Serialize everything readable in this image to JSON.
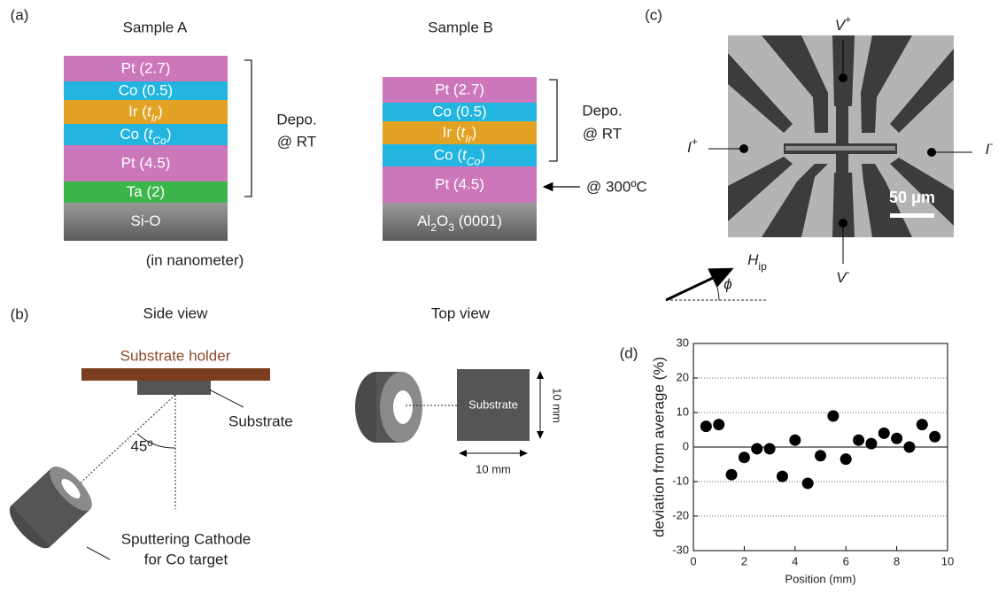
{
  "panel_labels": [
    "(a)",
    "(b)",
    "(c)",
    "(d)"
  ],
  "sample_a": {
    "title": "Sample A",
    "layers": [
      {
        "text": [
          "Pt (2.7)"
        ],
        "color": "#cc77bb"
      },
      {
        "text": [
          "Co (0.5)"
        ],
        "color": "#22b5e0"
      },
      {
        "text": [
          "Ir (",
          "t",
          "Ir",
          ")"
        ],
        "color": "#e2a224"
      },
      {
        "text": [
          "Co (",
          "t",
          "Co",
          ")"
        ],
        "color": "#22b5e0"
      },
      {
        "text": [
          "Pt (4.5)"
        ],
        "color": "#cc77bb"
      },
      {
        "text": [
          "Ta (2)"
        ],
        "color": "#3cb54a"
      }
    ],
    "substrate": [
      "Si-O"
    ],
    "note_lines": [
      "Depo.",
      "@ RT"
    ],
    "unit_note": "(in nanometer)"
  },
  "sample_b": {
    "title": "Sample B",
    "layers": [
      {
        "text": [
          "Pt (2.7)"
        ],
        "color": "#cc77bb"
      },
      {
        "text": [
          "Co (0.5)"
        ],
        "color": "#22b5e0"
      },
      {
        "text": [
          "Ir (",
          "t",
          "Ir",
          ")"
        ],
        "color": "#e2a224"
      },
      {
        "text": [
          "Co (",
          "t",
          "Co",
          ")"
        ],
        "color": "#22b5e0"
      },
      {
        "text": [
          "Pt (4.5)"
        ],
        "color": "#cc77bb"
      }
    ],
    "substrate": [
      "Al",
      "2",
      "O",
      "3",
      " (0001)"
    ],
    "note_lines": [
      "Depo.",
      "@ RT"
    ],
    "anneal_note": "@ 300ºC"
  },
  "side_view": {
    "title": "Side view",
    "holder": "Substrate holder",
    "substrate": "Substrate",
    "angle": "45º",
    "cathode_lines": [
      "Sputtering Cathode",
      "for Co target"
    ]
  },
  "top_view": {
    "title": "Top view",
    "substrate": "Substrate",
    "height": "10 mm",
    "width": "10 mm"
  },
  "device": {
    "v_plus": [
      "V",
      "+"
    ],
    "v_minus": [
      "V",
      "-"
    ],
    "i_plus": [
      "I",
      "+"
    ],
    "i_minus": [
      "I",
      "-"
    ],
    "scale": "50 μm",
    "field": [
      "H",
      "ip"
    ],
    "angle": "ϕ"
  },
  "chart_data": {
    "type": "scatter",
    "x_label": "Position (mm)",
    "y_label": "deviation from average (%)",
    "x": [
      0.5,
      1,
      1.5,
      2,
      2.5,
      3,
      3.5,
      4,
      4.5,
      5,
      5.5,
      6,
      6.5,
      7,
      7.5,
      8,
      8.5,
      9,
      9.5
    ],
    "values": [
      6,
      6.5,
      -8,
      -3,
      -0.5,
      -0.5,
      -8.5,
      2,
      -10.5,
      -2.5,
      9,
      -3.5,
      2,
      1,
      4,
      2.5,
      0,
      6.5,
      3
    ],
    "color": "#000000",
    "xlim": [
      0,
      10
    ],
    "xticks": [
      0,
      2,
      4,
      6,
      8,
      10
    ],
    "ylim": [
      -30,
      30
    ],
    "yticks": [
      -30,
      -20,
      -10,
      0,
      10,
      20,
      30
    ],
    "grid": true
  }
}
